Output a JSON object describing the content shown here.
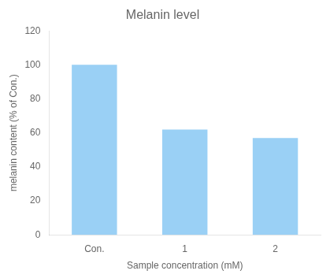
{
  "chart_data": {
    "type": "bar",
    "title": "Melanin level",
    "xlabel": "Sample concentration (mM)",
    "ylabel": "melanin content (% of Con.)",
    "categories": [
      "Con.",
      "1",
      "2"
    ],
    "values": [
      100,
      62,
      57
    ],
    "ylim": [
      0,
      120
    ],
    "yticks": [
      0,
      20,
      40,
      60,
      80,
      100,
      120
    ],
    "grid": false
  }
}
